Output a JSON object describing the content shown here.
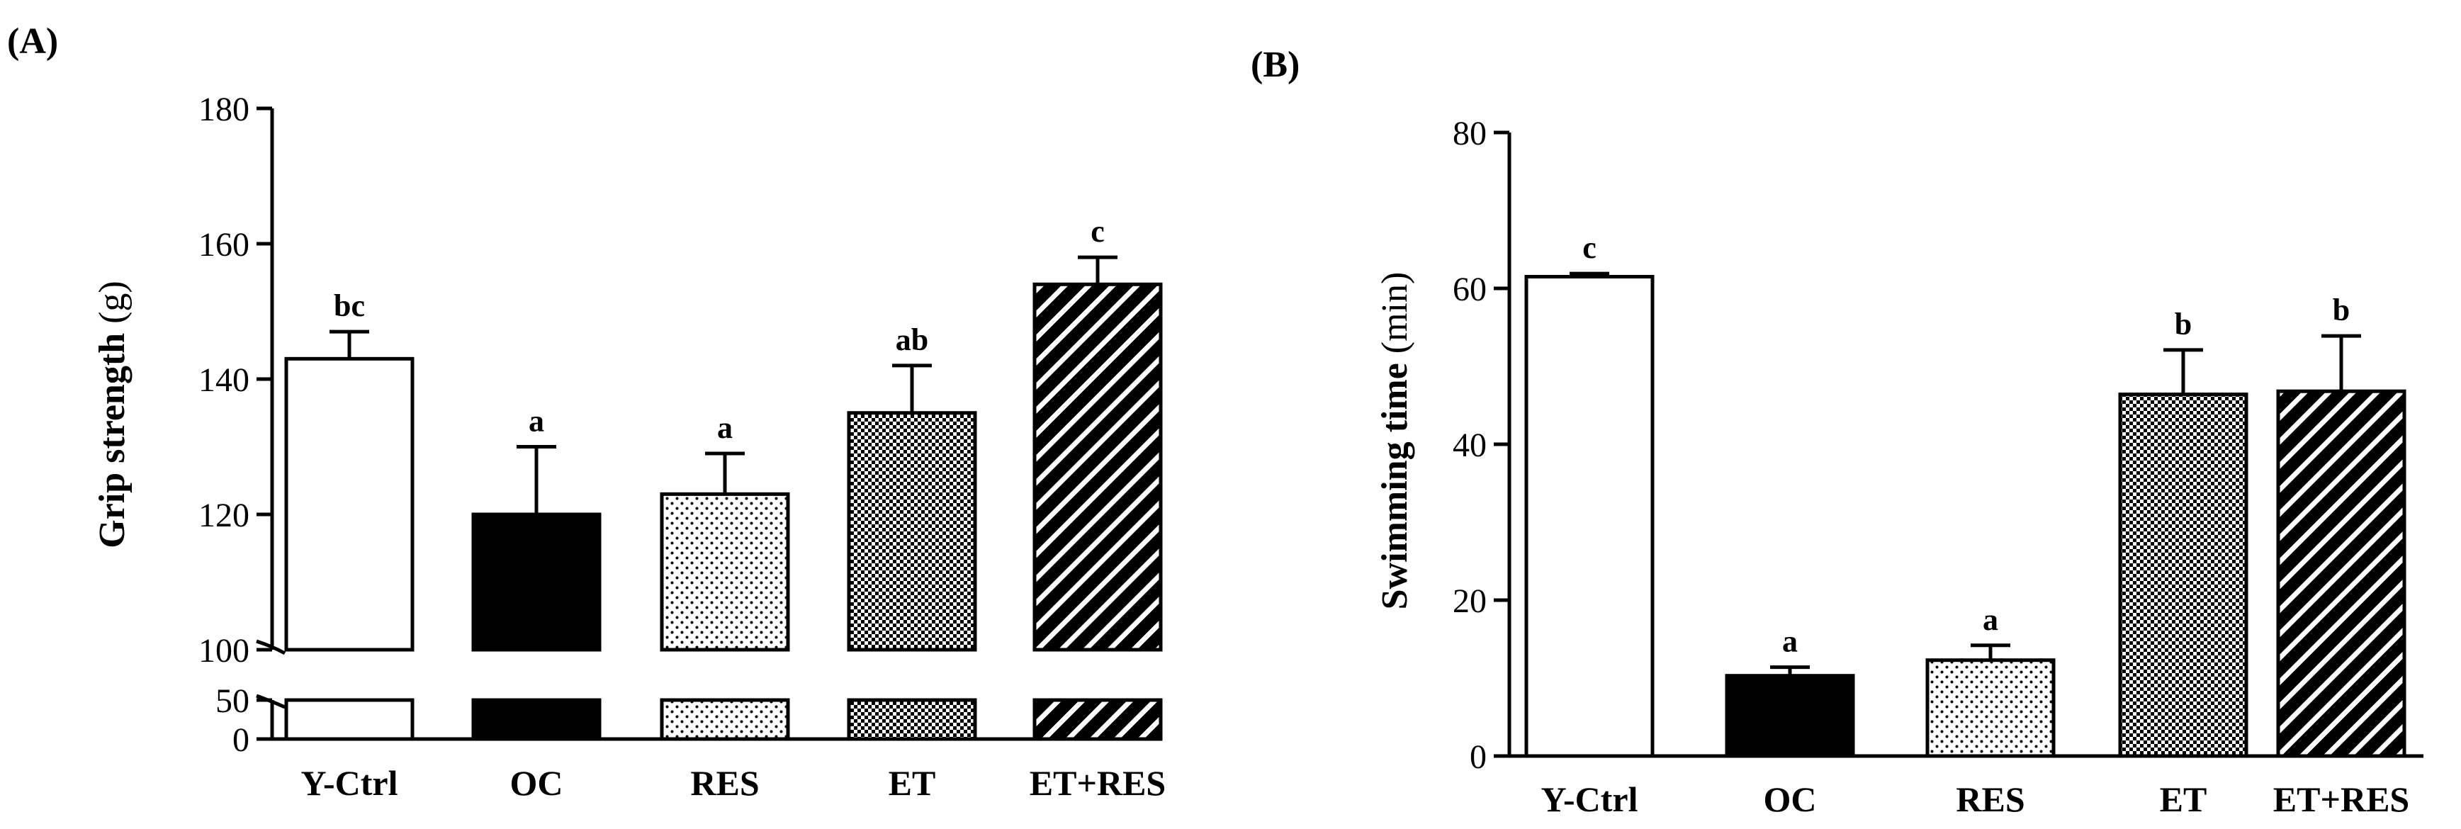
{
  "chart_data": [
    {
      "panel_label": "(A)",
      "type": "bar",
      "categories": [
        "Y-Ctrl",
        "OC",
        "RES",
        "ET",
        "ET+RES"
      ],
      "values": [
        143,
        120,
        123,
        135,
        154
      ],
      "errors": [
        4,
        10,
        6,
        7,
        4
      ],
      "significance": [
        "bc",
        "a",
        "a",
        "ab",
        "c"
      ],
      "patterns": [
        "white",
        "black",
        "dots",
        "checker",
        "diagonal"
      ],
      "ylabel_main": "Grip strength",
      "ylabel_unit": " (g)",
      "xlabel": "",
      "ylim": [
        0,
        180
      ],
      "axis_break": [
        50,
        100
      ],
      "yticks": [
        0,
        50,
        100,
        120,
        140,
        160,
        180
      ],
      "grid": false
    },
    {
      "panel_label": "(B)",
      "type": "bar",
      "categories": [
        "Y-Ctrl",
        "OC",
        "RES",
        "ET",
        "ET+RES"
      ],
      "values": [
        61.5,
        10.3,
        12.3,
        46.4,
        46.8
      ],
      "errors": [
        0.4,
        1.1,
        1.9,
        5.7,
        7.1
      ],
      "significance": [
        "c",
        "a",
        "a",
        "b",
        "b"
      ],
      "patterns": [
        "white",
        "black",
        "dots",
        "checker",
        "diagonal"
      ],
      "ylabel_main": "Swimming time",
      "ylabel_unit": " (min)",
      "xlabel": "",
      "ylim": [
        0,
        80
      ],
      "yticks": [
        0,
        20,
        40,
        60,
        80
      ],
      "grid": false
    }
  ]
}
